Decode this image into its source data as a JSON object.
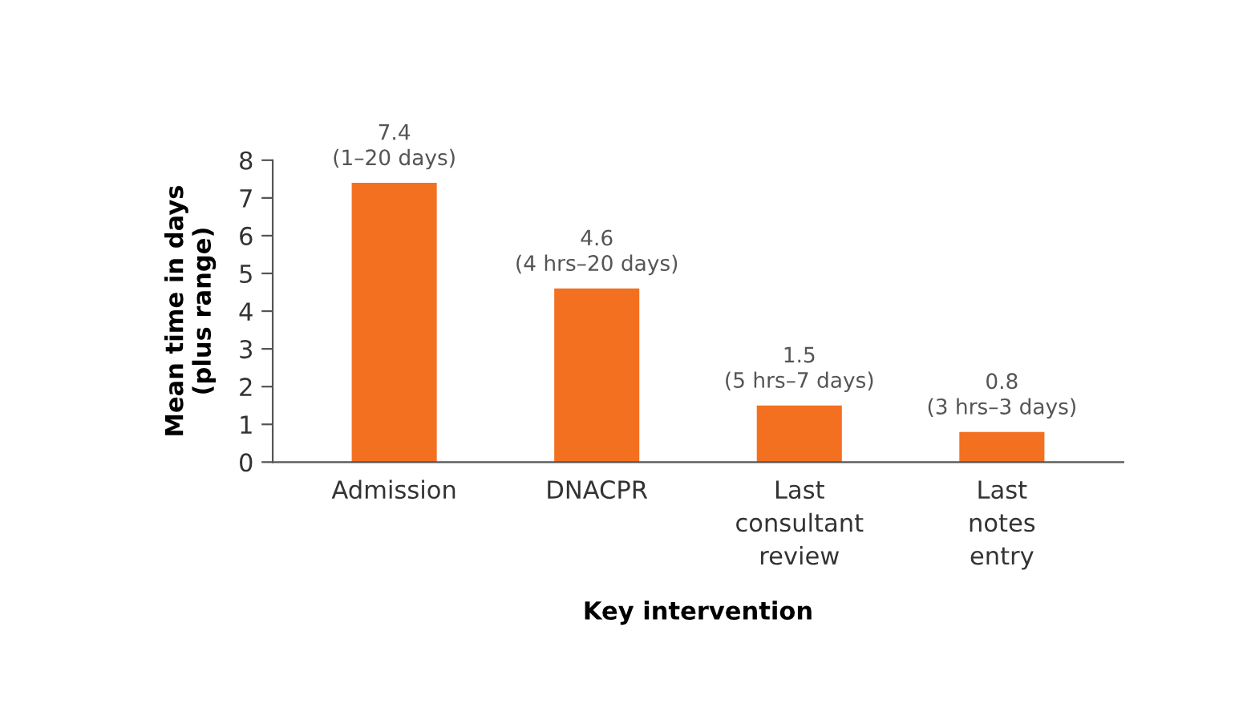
{
  "chart_data": {
    "type": "bar",
    "categories": [
      "Admission",
      "DNACPR",
      "Last\nconsultant\nreview",
      "Last\nnotes\nentry"
    ],
    "values": [
      7.4,
      4.6,
      1.5,
      0.8
    ],
    "value_labels": [
      "7.4\n(1–20 days)",
      "4.6\n(4 hrs–20 days)",
      "1.5\n(5 hrs–7 days)",
      "0.8\n(3 hrs–3 days)"
    ],
    "color": "#f37021",
    "xlabel": "Key intervention",
    "ylabel": "Mean time in days\n(plus range)",
    "ylim": [
      0,
      8
    ],
    "yticks": [
      0,
      1,
      2,
      3,
      4,
      5,
      6,
      7,
      8
    ],
    "grid": false,
    "legend": false
  }
}
